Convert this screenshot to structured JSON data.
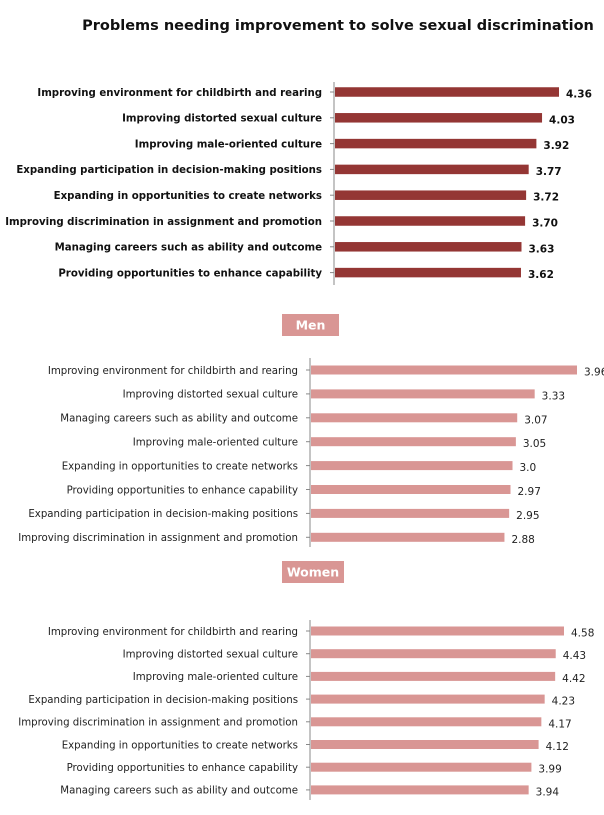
{
  "chart_data": [
    {
      "type": "bar",
      "orientation": "horizontal",
      "title": "Problems needing improvement to solve sexual discrimination",
      "section_label": "",
      "bar_color": "#943634",
      "xlim": [
        0,
        5
      ],
      "categories": [
        "Improving environment for childbirth and rearing",
        "Improving distorted sexual culture",
        "Improving male-oriented culture",
        "Expanding participation in decision-making positions",
        "Expanding in opportunities to create networks",
        "Improving discrimination in assignment and promotion",
        "Managing careers such as ability and outcome",
        "Providing opportunities to enhance capability"
      ],
      "values": [
        4.36,
        4.03,
        3.92,
        3.77,
        3.72,
        3.7,
        3.63,
        3.62
      ],
      "value_labels": [
        "4.36",
        "4.03",
        "3.92",
        "3.77",
        "3.72",
        "3.70",
        "3.63",
        "3.62"
      ]
    },
    {
      "type": "bar",
      "orientation": "horizontal",
      "title": "",
      "section_label": "Men",
      "label_color": "#D99694",
      "bar_color": "#D99694",
      "xlim": [
        0,
        4.2
      ],
      "categories": [
        "Improving environment for childbirth and rearing",
        "Improving distorted sexual culture",
        "Managing careers such as ability and outcome",
        "Improving male-oriented culture",
        "Expanding in opportunities to create networks",
        "Providing opportunities to enhance capability",
        "Expanding participation in decision-making positions",
        "Improving discrimination in assignment and promotion"
      ],
      "values": [
        3.96,
        3.33,
        3.07,
        3.05,
        3.0,
        2.97,
        2.95,
        2.88
      ],
      "value_labels": [
        "3.96",
        "3.33",
        "3.07",
        "3.05",
        "3.0",
        "2.97",
        "2.95",
        "2.88"
      ]
    },
    {
      "type": "bar",
      "orientation": "horizontal",
      "title": "",
      "section_label": "Women",
      "label_color": "#D99694",
      "bar_color": "#D99694",
      "xlim": [
        0,
        4.58
      ],
      "categories": [
        "Improving environment for childbirth and rearing",
        "Improving distorted sexual culture",
        "Improving male-oriented culture",
        "Expanding participation in decision-making positions",
        "Improving discrimination in assignment and promotion",
        "Expanding in opportunities to create networks",
        "Providing opportunities to enhance capability",
        "Managing careers such as ability and outcome"
      ],
      "values": [
        4.58,
        4.43,
        4.42,
        4.23,
        4.17,
        4.12,
        3.99,
        3.94
      ],
      "value_labels": [
        "4.58",
        "4.43",
        "4.42",
        "4.23",
        "4.17",
        "4.12",
        "3.99",
        "3.94"
      ]
    }
  ]
}
